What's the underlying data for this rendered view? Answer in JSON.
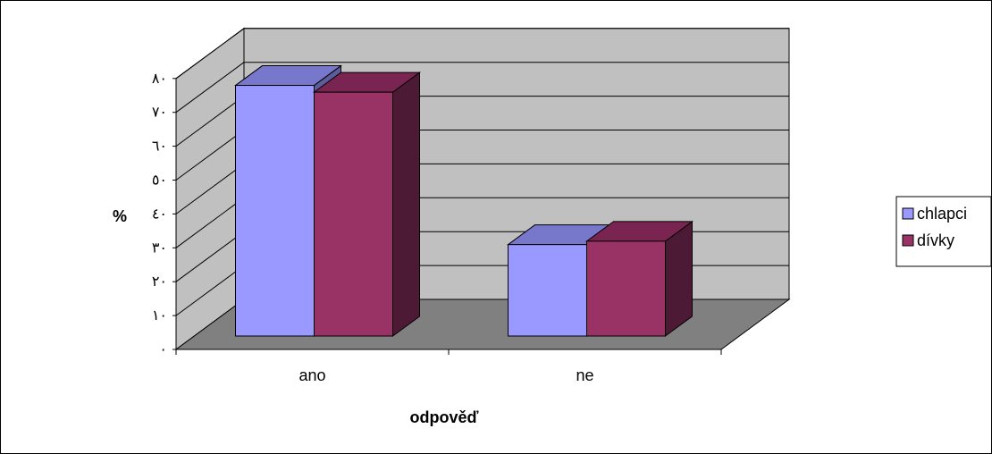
{
  "chart_data": {
    "type": "bar",
    "style": "3d-clustered-column",
    "title": "",
    "xlabel": "odpověď",
    "ylabel": "%",
    "categories": [
      "ano",
      "ne"
    ],
    "series": [
      {
        "name": "chlapci",
        "values": [
          74,
          27
        ],
        "color": "#9999ff",
        "top_color": "#7777cc",
        "side_color": "#5c5c99"
      },
      {
        "name": "dívky",
        "values": [
          72,
          28
        ],
        "color": "#993366",
        "top_color": "#7a2452",
        "side_color": "#4d1a35"
      }
    ],
    "ylim": [
      0,
      80
    ],
    "yticks": [
      0,
      10,
      20,
      30,
      40,
      50,
      60,
      70,
      80
    ],
    "ytick_labels": [
      "٠",
      "١٠",
      "٢٠",
      "٣٠",
      "٤٠",
      "٥٠",
      "٦٠",
      "٧٠",
      "٨٠"
    ],
    "grid": true,
    "legend": "right",
    "wall_color": "#c0c0c0",
    "floor_color": "#808080"
  }
}
